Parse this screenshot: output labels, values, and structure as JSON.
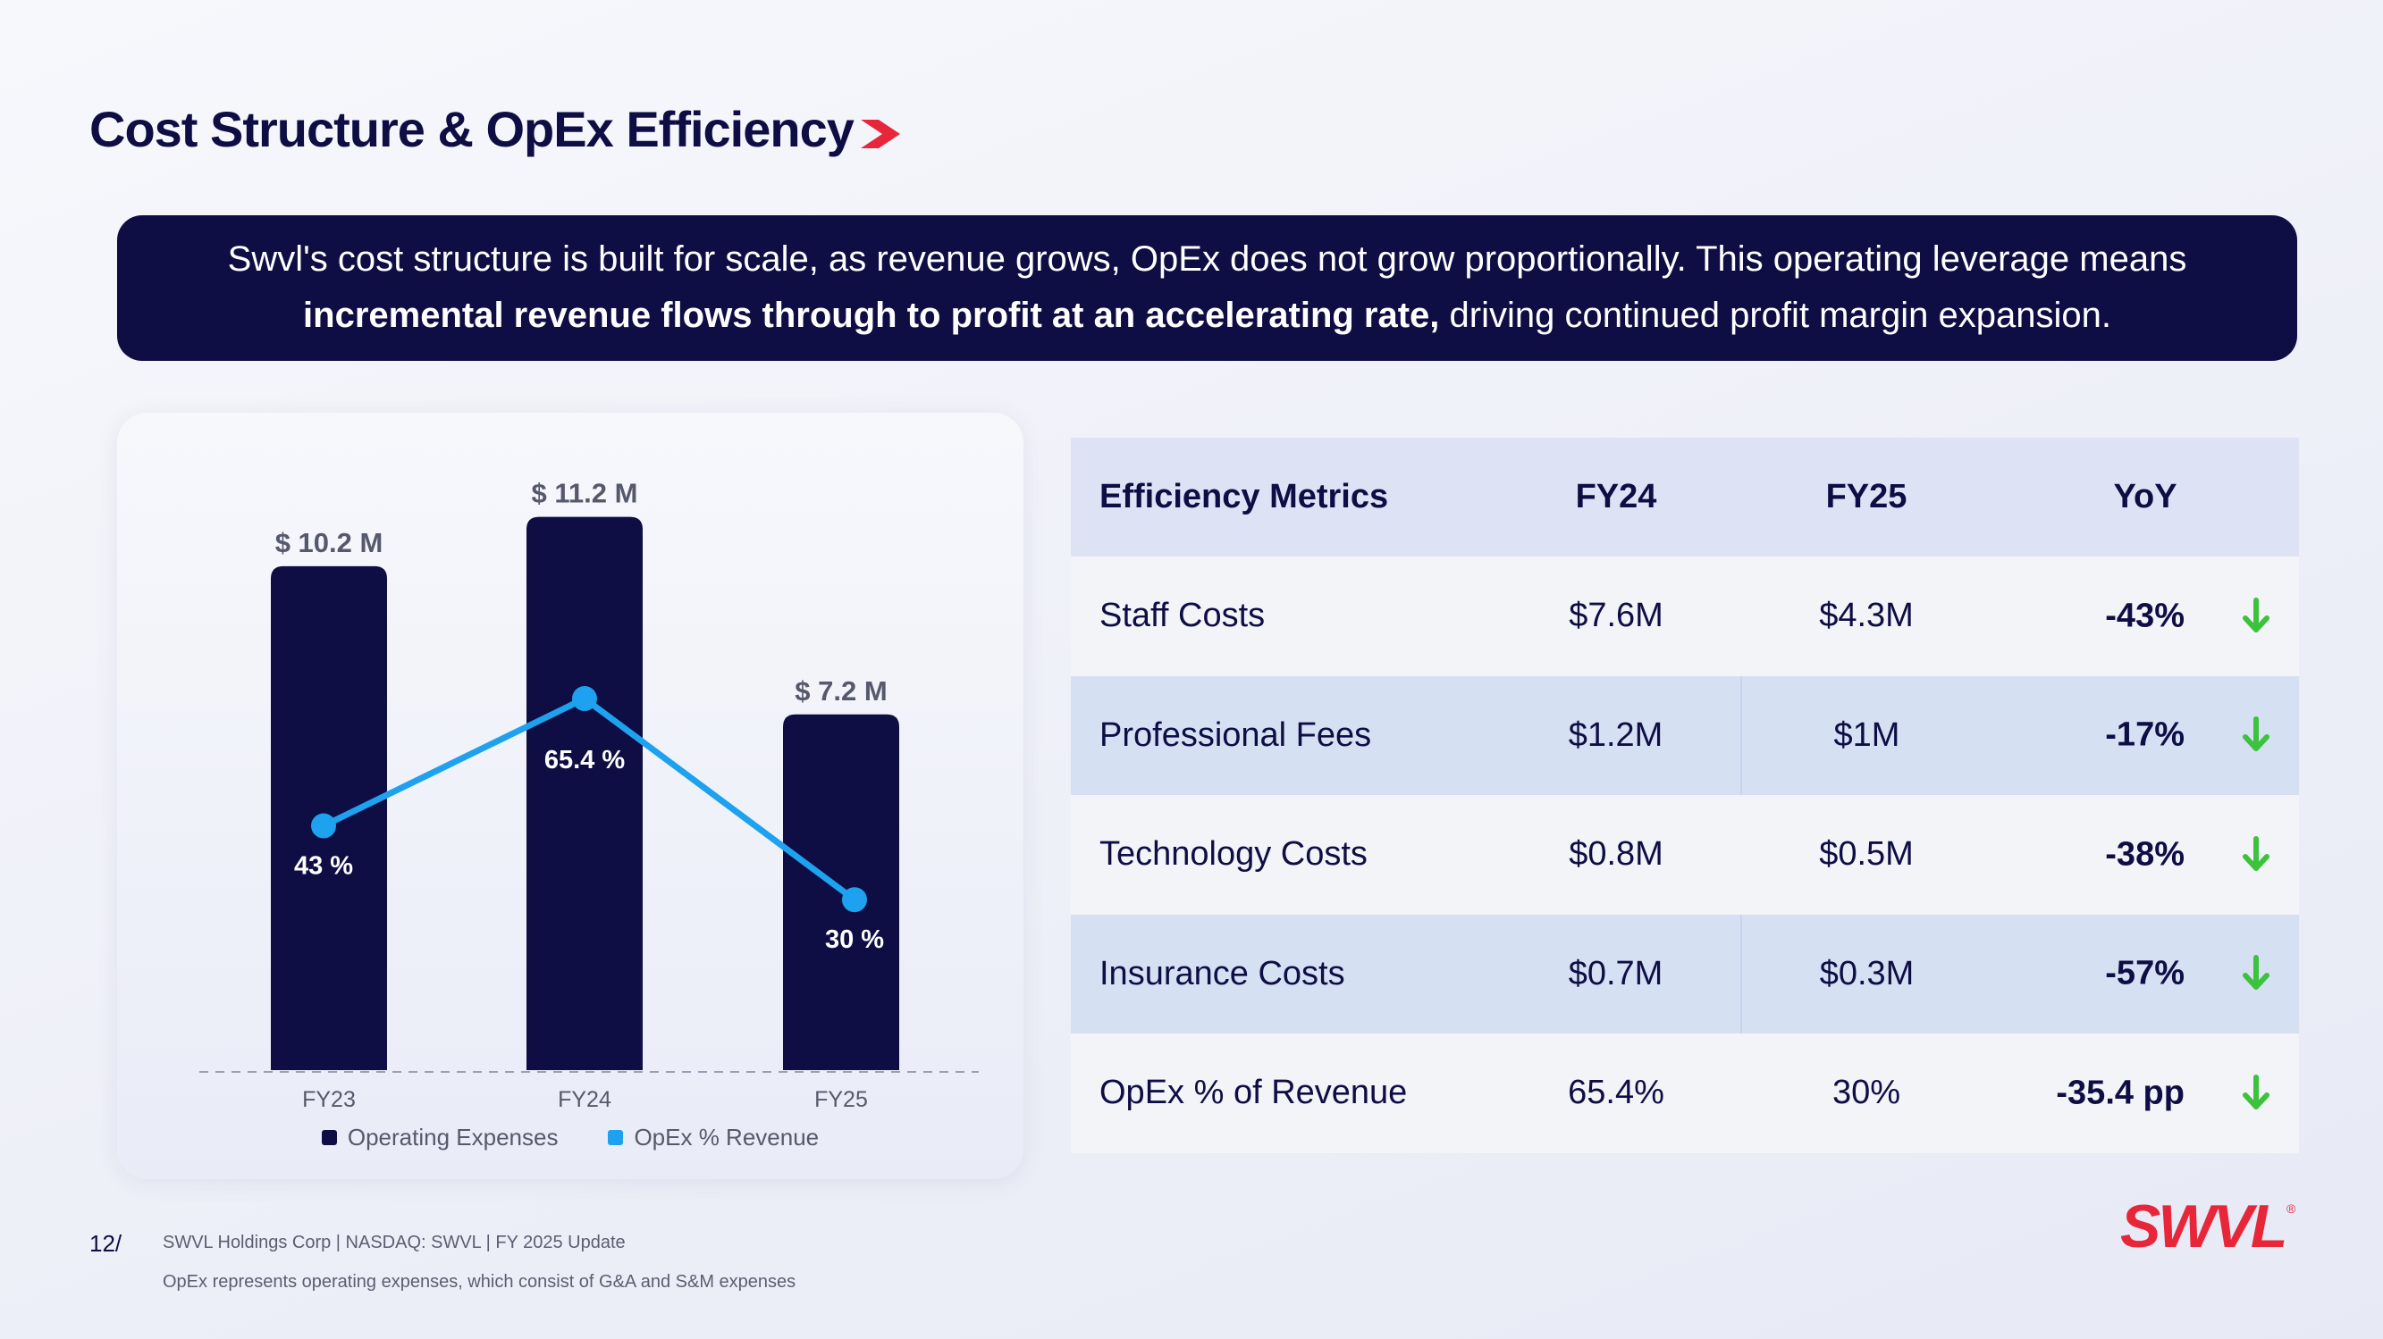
{
  "title": "Cost Structure & OpEx Efficiency",
  "colors": {
    "navy": "#0e0e45",
    "red": "#e8263a",
    "blue": "#1ea1ee",
    "green": "#3cc23c"
  },
  "banner": {
    "line1": "Swvl's cost structure is built for scale, as revenue grows, OpEx does not grow proportionally. This operating leverage means",
    "line2_bold": "incremental revenue flows through to profit at an accelerating rate,",
    "line2_rest": " driving continued profit margin expansion."
  },
  "chart_data": {
    "type": "bar",
    "categories": [
      "FY23",
      "FY24",
      "FY25"
    ],
    "series": [
      {
        "name": "Operating Expenses",
        "type": "bar",
        "values": [
          10.2,
          11.2,
          7.2
        ],
        "labels": [
          "$ 10.2 M",
          "$ 11.2 M",
          "$ 7.2 M"
        ],
        "color": "#0e0e45"
      },
      {
        "name": "OpEx % Revenue",
        "type": "line",
        "values": [
          43,
          65.4,
          30
        ],
        "labels": [
          "43 %",
          "65.4 %",
          "30 %"
        ],
        "color": "#1ea1ee"
      }
    ],
    "ylim_bar": [
      0,
      11.5
    ],
    "ylim_line": [
      0,
      100
    ],
    "legend_position": "bottom-center",
    "grid": false
  },
  "table": {
    "headers": [
      "Efficiency Metrics",
      "FY24",
      "FY25",
      "YoY"
    ],
    "rows": [
      {
        "metric": "Staff Costs",
        "fy24": "$7.6M",
        "fy25": "$4.3M",
        "yoy": "-43%"
      },
      {
        "metric": "Professional Fees",
        "fy24": "$1.2M",
        "fy25": "$1M",
        "yoy": "-17%"
      },
      {
        "metric": "Technology Costs",
        "fy24": "$0.8M",
        "fy25": "$0.5M",
        "yoy": "-38%"
      },
      {
        "metric": "Insurance Costs",
        "fy24": "$0.7M",
        "fy25": "$0.3M",
        "yoy": "-57%"
      },
      {
        "metric": "OpEx % of Revenue",
        "fy24": "65.4%",
        "fy25": "30%",
        "yoy": "-35.4 pp"
      }
    ],
    "trend_icon": "arrow-down-icon"
  },
  "footer": {
    "page": "12/",
    "info": "SWVL Holdings Corp  |  NASDAQ: SWVL  |  FY 2025 Update",
    "note": "OpEx represents operating expenses, which consist of G&A and S&M expenses"
  },
  "logo": {
    "text": "SWVL",
    "registered": "®"
  }
}
